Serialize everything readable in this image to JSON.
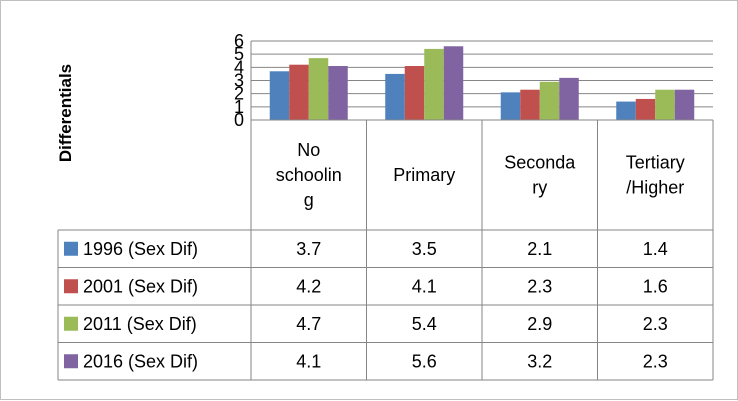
{
  "chart_data": {
    "type": "bar",
    "title": "",
    "ylabel": "Differentials",
    "xlabel": "",
    "ylim": [
      0,
      6
    ],
    "yticks": [
      "0",
      "1",
      "2",
      "3",
      "4",
      "5",
      "6"
    ],
    "grid": true,
    "legend": "data-table",
    "categories": [
      "No schooling",
      "Primary",
      "Secondary",
      "Tertiary /Higher"
    ],
    "category_lines": [
      [
        "No",
        "schoolin",
        "g"
      ],
      [
        "Primary"
      ],
      [
        "Seconda",
        "ry"
      ],
      [
        "Tertiary",
        "/Higher"
      ]
    ],
    "series": [
      {
        "name": "1996 (Sex Dif)",
        "color": "#4f81bd",
        "values": [
          3.7,
          3.5,
          2.1,
          1.4
        ]
      },
      {
        "name": "2001 (Sex Dif)",
        "color": "#c0504d",
        "values": [
          4.2,
          4.1,
          2.3,
          1.6
        ]
      },
      {
        "name": "2011 (Sex Dif)",
        "color": "#9bbb59",
        "values": [
          4.7,
          5.4,
          2.9,
          2.3
        ]
      },
      {
        "name": "2016 (Sex Dif)",
        "color": "#8064a2",
        "values": [
          4.1,
          5.6,
          3.2,
          2.3
        ]
      }
    ]
  }
}
